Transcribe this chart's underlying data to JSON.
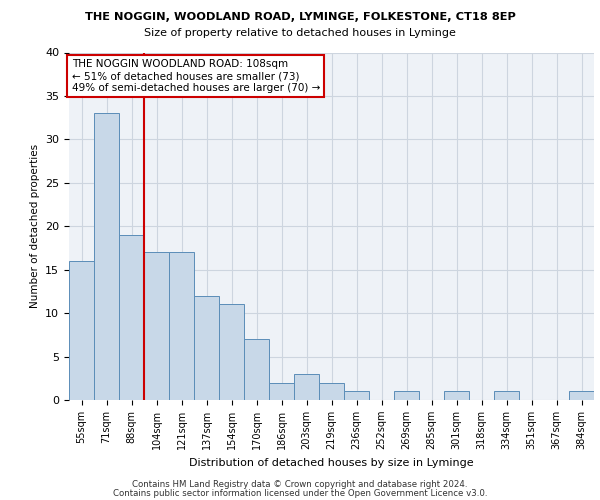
{
  "title1": "THE NOGGIN, WOODLAND ROAD, LYMINGE, FOLKESTONE, CT18 8EP",
  "title2": "Size of property relative to detached houses in Lyminge",
  "xlabel": "Distribution of detached houses by size in Lyminge",
  "ylabel": "Number of detached properties",
  "categories": [
    "55sqm",
    "71sqm",
    "88sqm",
    "104sqm",
    "121sqm",
    "137sqm",
    "154sqm",
    "170sqm",
    "186sqm",
    "203sqm",
    "219sqm",
    "236sqm",
    "252sqm",
    "269sqm",
    "285sqm",
    "301sqm",
    "318sqm",
    "334sqm",
    "351sqm",
    "367sqm",
    "384sqm"
  ],
  "values": [
    16,
    33,
    19,
    17,
    17,
    12,
    11,
    7,
    2,
    3,
    2,
    1,
    0,
    1,
    0,
    1,
    0,
    1,
    0,
    0,
    1
  ],
  "bar_color": "#c8d8e8",
  "bar_edge_color": "#5b8db8",
  "vline_color": "#cc0000",
  "annotation_text": "THE NOGGIN WOODLAND ROAD: 108sqm\n← 51% of detached houses are smaller (73)\n49% of semi-detached houses are larger (70) →",
  "annotation_box_color": "#ffffff",
  "annotation_box_edge": "#cc0000",
  "ylim": [
    0,
    40
  ],
  "yticks": [
    0,
    5,
    10,
    15,
    20,
    25,
    30,
    35,
    40
  ],
  "footer1": "Contains HM Land Registry data © Crown copyright and database right 2024.",
  "footer2": "Contains public sector information licensed under the Open Government Licence v3.0.",
  "bg_color": "#eef2f7",
  "grid_color": "#cdd5df"
}
